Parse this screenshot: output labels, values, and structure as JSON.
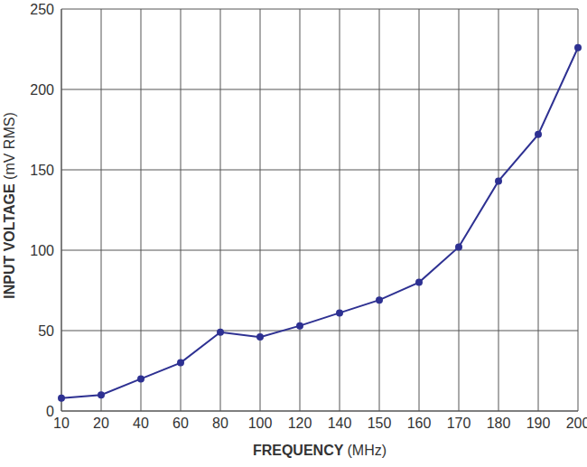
{
  "chart_data": {
    "type": "line",
    "x_label": "FREQUENCY (MHz)",
    "y_label": "INPUT VOLTAGE (mV RMS)",
    "categories": [
      10,
      20,
      40,
      60,
      80,
      100,
      120,
      140,
      150,
      160,
      170,
      180,
      190,
      200
    ],
    "values": [
      8,
      10,
      20,
      30,
      49,
      46,
      53,
      61,
      69,
      80,
      102,
      143,
      172,
      226
    ],
    "color": "#2e3192",
    "marker": "circle",
    "ylim": [
      0,
      250
    ],
    "yticks": [
      0,
      50,
      100,
      150,
      200,
      250
    ],
    "grid": true
  }
}
